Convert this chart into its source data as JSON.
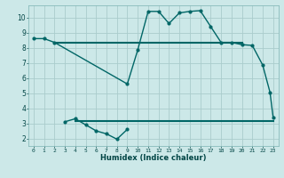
{
  "bg_color": "#cce8e8",
  "grid_color": "#aacccc",
  "line_color": "#006666",
  "xlabel": "Humidex (Indice chaleur)",
  "ylim": [
    1.5,
    10.8
  ],
  "xlim": [
    -0.5,
    23.5
  ],
  "yticks": [
    2,
    3,
    4,
    5,
    6,
    7,
    8,
    9,
    10
  ],
  "xtick_labels": [
    "0",
    "1",
    "2",
    "3",
    "4",
    "5",
    "6",
    "7",
    "8",
    "9",
    "10",
    "11",
    "12",
    "13",
    "14",
    "15",
    "16",
    "17",
    "18",
    "19",
    "20",
    "21",
    "22",
    "23"
  ],
  "curve1_x": [
    0,
    1,
    2,
    9,
    10,
    11,
    12,
    13,
    14,
    15,
    16,
    17,
    18,
    19,
    20,
    21,
    22,
    22.7,
    23
  ],
  "curve1_y": [
    8.6,
    8.6,
    8.35,
    5.6,
    7.85,
    10.4,
    10.4,
    9.6,
    10.3,
    10.4,
    10.45,
    9.4,
    8.35,
    8.35,
    8.2,
    8.15,
    6.85,
    5.05,
    3.4
  ],
  "hline1_x": [
    2,
    20
  ],
  "hline1_y": [
    8.3,
    8.3
  ],
  "curve2_x": [
    3,
    4,
    5,
    6,
    7,
    8,
    9
  ],
  "curve2_y": [
    3.1,
    3.3,
    2.9,
    2.5,
    2.3,
    1.95,
    2.6
  ],
  "hline2_x": [
    4,
    23
  ],
  "hline2_y": [
    3.15,
    3.15
  ]
}
